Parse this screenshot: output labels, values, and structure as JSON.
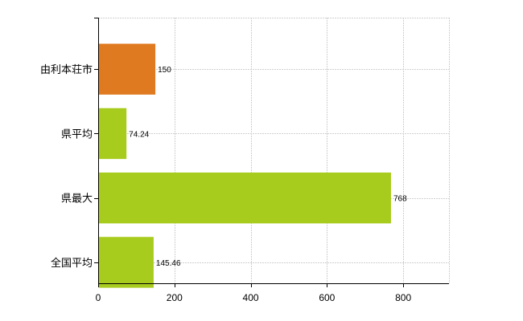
{
  "chart_data": {
    "type": "bar",
    "orientation": "horizontal",
    "categories": [
      "由利本荘市",
      "県平均",
      "県最大",
      "全国平均"
    ],
    "values": [
      150,
      74.24,
      768,
      145.46
    ],
    "value_labels": [
      "150",
      "74.24",
      "768",
      "145.46"
    ],
    "bar_colors": [
      "#e07a20",
      "#a8cc1e",
      "#a8cc1e",
      "#a8cc1e"
    ],
    "highlight_color": "#e07a20",
    "base_color": "#a8cc1e",
    "title": "",
    "xlabel": "",
    "ylabel": "",
    "xlim": [
      0,
      920
    ],
    "x_ticks": [
      0,
      200,
      400,
      600,
      800
    ],
    "x_tick_labels": [
      "0",
      "200",
      "400",
      "600",
      "800"
    ],
    "grid": true,
    "legend": "none"
  }
}
